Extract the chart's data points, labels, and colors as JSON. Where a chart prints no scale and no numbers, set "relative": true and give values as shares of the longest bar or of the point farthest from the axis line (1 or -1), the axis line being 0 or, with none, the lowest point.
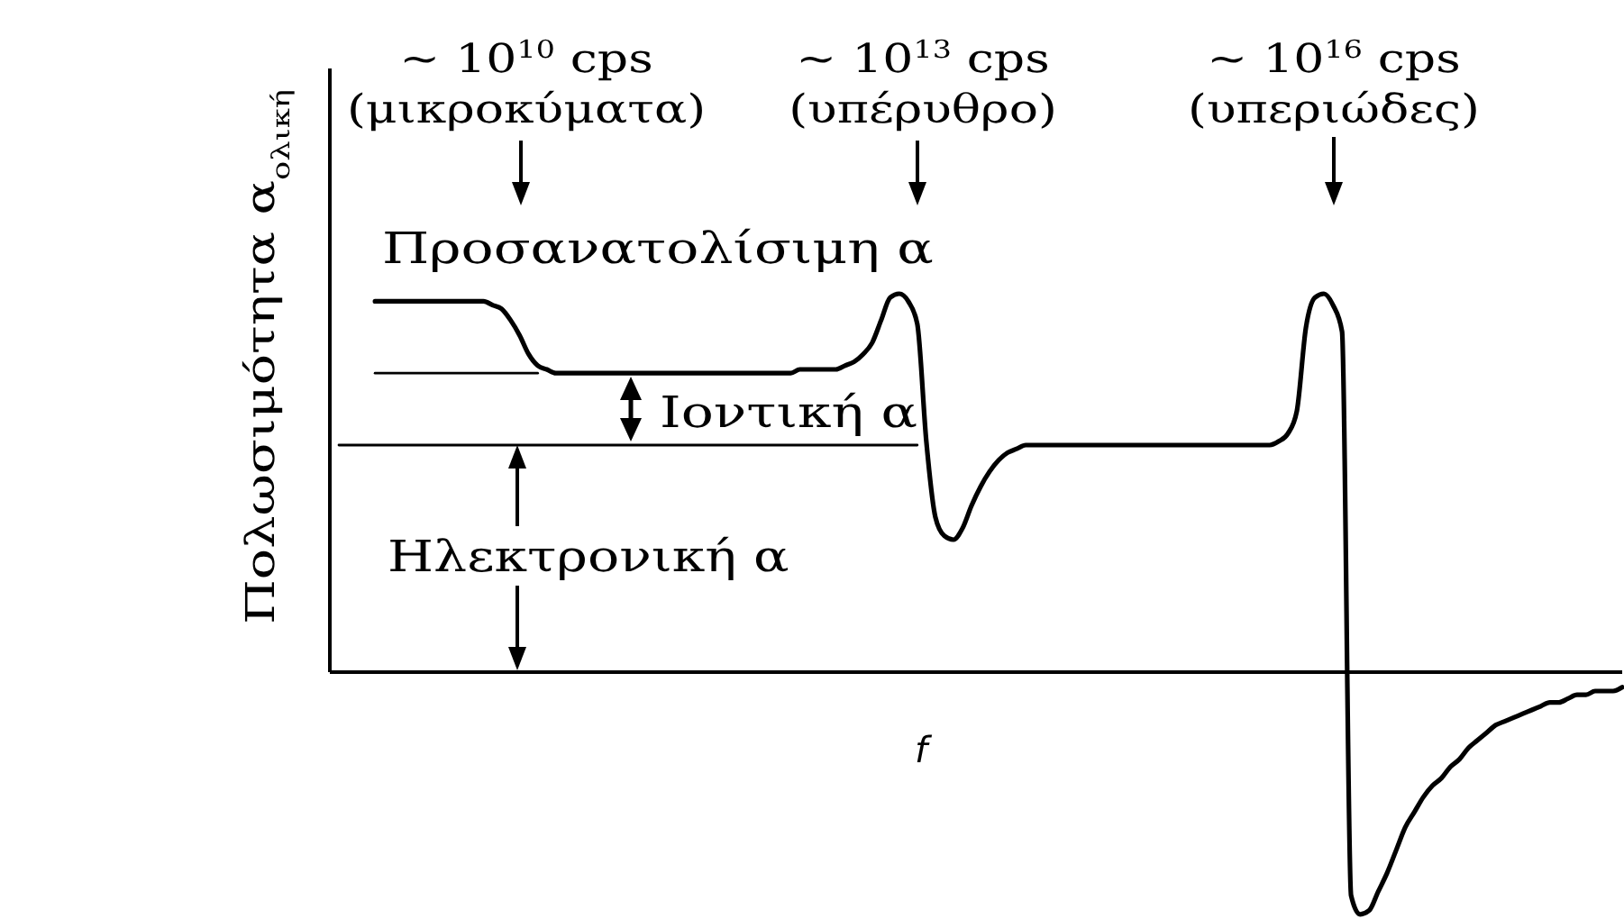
{
  "chart_data": {
    "type": "line",
    "relative": true,
    "xlabel": "f",
    "ylabel": "Πολωσιμότητα α$_{ολική}$",
    "annotations": [
      "~ 10$^{10}$ cps\n(μικροκύματα)",
      "~ 10$^{13}$ cps\n(υπέρυθρο)",
      "~ 10$^{16}$ cps\n(υπεριώδες)",
      "Προσανατολίσιμη α",
      "Ιοντική α",
      "Ηλεκτρονική α"
    ],
    "categories": [
      null,
      null,
      null,
      null,
      null,
      null,
      null,
      null,
      null,
      null,
      null,
      null,
      null,
      null,
      null,
      null,
      null,
      null,
      null,
      null,
      null,
      null,
      null,
      null,
      null,
      null,
      null,
      null,
      null,
      null,
      null,
      null,
      null,
      null,
      null,
      null,
      null,
      null,
      null,
      null,
      null,
      null,
      null,
      null,
      null,
      null,
      null,
      null,
      null,
      null,
      null,
      null,
      null,
      null,
      null,
      null,
      null,
      null,
      null,
      null,
      null,
      null,
      null,
      null,
      null,
      null,
      null,
      null,
      null,
      null,
      null,
      null,
      null,
      null,
      null,
      null,
      null,
      null,
      null,
      null,
      null,
      null,
      null,
      null,
      null,
      null,
      null,
      null,
      null,
      null,
      null,
      null,
      null,
      null,
      null,
      null,
      null,
      null,
      null,
      null,
      null,
      null,
      null,
      null,
      null,
      null,
      null,
      null,
      null,
      null,
      null,
      null,
      null,
      null,
      null,
      null,
      null,
      null,
      null,
      null,
      null,
      null,
      null,
      null,
      null,
      null,
      null,
      null,
      null,
      null,
      null,
      null,
      null,
      null,
      null,
      null,
      null,
      null,
      null,
      null,
      null,
      null,
      null,
      null
    ],
    "series": [
      {
        "color": "#000000",
        "values": [
          null,
          null,
          null,
          null,
          null,
          0.98,
          0.98,
          0.98,
          0.98,
          0.98,
          0.98,
          0.98,
          0.98,
          0.98,
          0.98,
          0.98,
          0.98,
          0.98,
          0.97,
          0.96,
          0.93,
          0.89,
          0.84,
          0.81,
          0.8,
          0.79,
          0.79,
          0.79,
          0.79,
          0.79,
          0.79,
          0.79,
          0.79,
          0.79,
          0.79,
          0.79,
          0.79,
          0.79,
          0.79,
          0.79,
          0.79,
          0.79,
          0.79,
          0.79,
          0.79,
          0.79,
          0.79,
          0.79,
          0.79,
          0.79,
          0.79,
          0.79,
          0.8,
          0.8,
          0.8,
          0.8,
          0.8,
          0.81,
          0.82,
          0.84,
          0.87,
          0.93,
          0.99,
          1.0,
          0.98,
          0.92,
          0.61,
          0.41,
          0.36,
          0.35,
          0.38,
          0.44,
          0.49,
          0.53,
          0.56,
          0.58,
          0.59,
          0.6,
          0.6,
          0.6,
          0.6,
          0.6,
          0.6,
          0.6,
          0.6,
          0.6,
          0.6,
          0.6,
          0.6,
          0.6,
          0.6,
          0.6,
          0.6,
          0.6,
          0.6,
          0.6,
          0.6,
          0.6,
          0.6,
          0.6,
          0.6,
          0.6,
          0.6,
          0.6,
          0.6,
          0.61,
          0.63,
          0.69,
          0.91,
          0.99,
          1.0,
          0.97,
          0.9,
          -0.59,
          -0.64,
          -0.63,
          -0.58,
          -0.53,
          -0.47,
          -0.41,
          -0.37,
          -0.33,
          -0.3,
          -0.28,
          -0.25,
          -0.23,
          -0.2,
          -0.18,
          -0.16,
          -0.14,
          -0.13,
          -0.12,
          -0.11,
          -0.1,
          -0.09,
          -0.08,
          -0.08,
          -0.07,
          -0.06,
          -0.06,
          -0.05,
          -0.05,
          -0.05,
          -0.04
        ]
      },
      {
        "color": "#000000",
        "values": [
          null,
          null,
          null,
          null,
          null,
          0.79,
          0.79,
          0.79,
          0.79,
          0.79,
          0.79,
          0.79,
          0.79,
          0.79,
          0.79,
          0.79,
          0.79,
          0.79,
          0.79,
          0.79,
          0.79,
          0.79,
          0.79,
          0.79,
          null,
          null,
          null,
          null,
          null,
          null,
          null,
          null,
          null,
          null,
          null,
          null,
          null,
          null,
          null,
          null,
          null,
          null,
          null,
          null,
          null,
          null,
          null,
          null,
          null,
          null,
          null,
          null,
          null,
          null,
          null,
          null,
          null,
          null,
          null,
          null,
          null,
          null,
          null,
          null,
          null,
          null,
          null,
          null,
          null,
          null,
          null,
          null,
          null,
          null,
          null,
          null,
          null,
          null,
          null,
          null,
          null,
          null,
          null,
          null,
          null,
          null,
          null,
          null,
          null,
          null,
          null,
          null,
          null,
          null,
          null,
          null,
          null,
          null,
          null,
          null,
          null,
          null,
          null,
          null,
          null,
          null,
          null,
          null,
          null,
          null,
          null,
          null,
          null,
          null,
          null,
          null,
          null,
          null,
          null,
          null,
          null,
          null,
          null,
          null,
          null,
          null,
          null,
          null,
          null,
          null,
          null,
          null,
          null,
          null,
          null,
          null,
          null,
          null,
          null,
          null,
          null,
          null,
          null,
          null
        ]
      },
      {
        "color": "#000000",
        "values": [
          null,
          0.6,
          0.6,
          0.6,
          0.6,
          0.6,
          0.6,
          0.6,
          0.6,
          0.6,
          0.6,
          0.6,
          0.6,
          0.6,
          0.6,
          0.6,
          0.6,
          0.6,
          0.6,
          0.6,
          0.6,
          0.6,
          0.6,
          0.6,
          0.6,
          0.6,
          0.6,
          0.6,
          0.6,
          0.6,
          0.6,
          0.6,
          0.6,
          0.6,
          0.6,
          0.6,
          0.6,
          0.6,
          0.6,
          0.6,
          0.6,
          0.6,
          0.6,
          0.6,
          0.6,
          0.6,
          0.6,
          0.6,
          0.6,
          0.6,
          0.6,
          0.6,
          0.6,
          0.6,
          0.6,
          0.6,
          0.6,
          0.6,
          0.6,
          0.6,
          0.6,
          0.6,
          0.6,
          0.6,
          0.6,
          0.6,
          null,
          null,
          null,
          null,
          null,
          null,
          null,
          null,
          null,
          null,
          null,
          null,
          null,
          null,
          null,
          null,
          null,
          null,
          null,
          null,
          null,
          null,
          null,
          null,
          null,
          null,
          null,
          null,
          null,
          null,
          null,
          null,
          null,
          null,
          null,
          null,
          null,
          null,
          null,
          null,
          null,
          null,
          null,
          null,
          null,
          null,
          null,
          null,
          null,
          null,
          null,
          null,
          null,
          null,
          null,
          null,
          null,
          null,
          null,
          null,
          null,
          null,
          null,
          null,
          null,
          null,
          null,
          null,
          null,
          null,
          null,
          null,
          null,
          null,
          null,
          null,
          null,
          null
        ]
      }
    ]
  }
}
